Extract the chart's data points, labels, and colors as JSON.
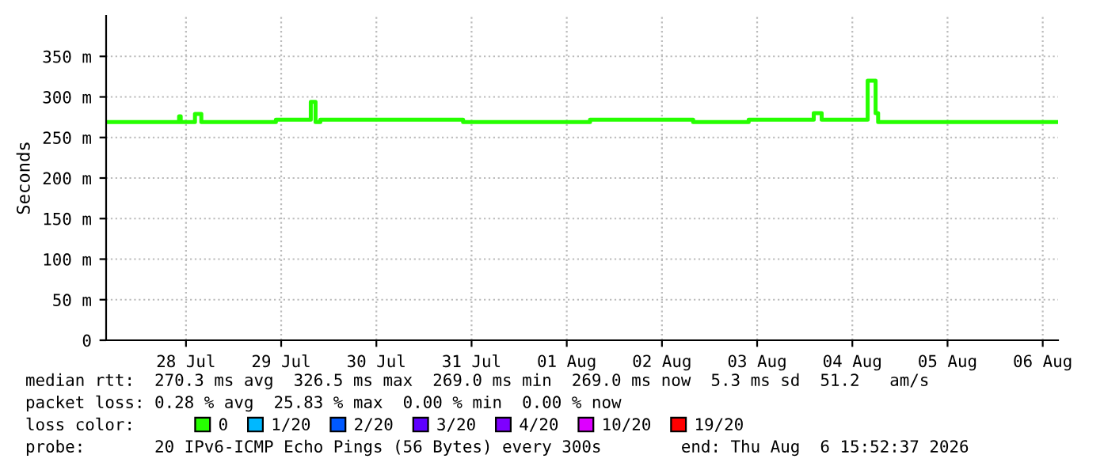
{
  "chart_data": {
    "type": "step",
    "ylabel": "Seconds",
    "legend_title": "loss color:",
    "legend": "bottom",
    "grid": true,
    "marker": "none",
    "line_style": "solid",
    "x": [
      "2026-07-27T15:52",
      "2026-07-28T10:16",
      "2026-07-28T10:40",
      "2026-07-28T14:16",
      "2026-07-28T15:52",
      "2026-07-29T10:40",
      "2026-07-29T19:28",
      "2026-07-29T20:40",
      "2026-07-29T21:52",
      "2026-07-31T09:52",
      "2026-08-01T17:52",
      "2026-08-02T19:52",
      "2026-08-03T09:52",
      "2026-08-04T02:16",
      "2026-08-04T04:16",
      "2026-08-04T15:52",
      "2026-08-04T17:52",
      "2026-08-04T18:30",
      "2026-08-06T15:52"
    ],
    "series": [
      {
        "name": "0",
        "color": "#26ff00",
        "values": [
          269,
          276,
          269,
          279,
          269,
          272,
          294,
          269,
          272,
          269,
          272,
          269,
          272,
          280,
          272,
          320,
          280,
          269,
          269
        ]
      },
      {
        "name": "1/20",
        "color": "#00b8ff",
        "values": [
          null,
          null,
          null,
          null,
          null,
          null,
          null,
          null,
          null,
          null,
          null,
          null,
          null,
          null,
          null,
          null,
          null,
          null,
          null
        ]
      },
      {
        "name": "2/20",
        "color": "#0059ff",
        "values": [
          null,
          null,
          null,
          null,
          null,
          null,
          null,
          null,
          null,
          null,
          null,
          null,
          null,
          null,
          null,
          null,
          null,
          null,
          null
        ]
      },
      {
        "name": "3/20",
        "color": "#5e00ff",
        "values": [
          null,
          null,
          null,
          null,
          null,
          null,
          null,
          null,
          null,
          null,
          null,
          null,
          null,
          null,
          null,
          null,
          null,
          null,
          null
        ]
      },
      {
        "name": "4/20",
        "color": "#7e00ff",
        "values": [
          null,
          null,
          null,
          null,
          null,
          null,
          null,
          null,
          null,
          null,
          null,
          null,
          null,
          null,
          null,
          null,
          null,
          null,
          null
        ]
      },
      {
        "name": "10/20",
        "color": "#dd00ff",
        "values": [
          null,
          null,
          null,
          null,
          null,
          null,
          null,
          null,
          null,
          null,
          null,
          null,
          null,
          null,
          null,
          null,
          null,
          null,
          null
        ]
      },
      {
        "name": "19/20",
        "color": "#ff0000",
        "values": [
          null,
          null,
          null,
          null,
          null,
          null,
          null,
          null,
          null,
          null,
          null,
          null,
          null,
          null,
          null,
          null,
          null,
          null,
          null
        ]
      }
    ],
    "xlim": [
      "2026-07-27T15:52",
      "2026-08-06T15:52"
    ],
    "xticks": [
      {
        "value": "2026-07-28T12:00",
        "label": "28 Jul"
      },
      {
        "value": "2026-07-29T12:00",
        "label": "29 Jul"
      },
      {
        "value": "2026-07-30T12:00",
        "label": "30 Jul"
      },
      {
        "value": "2026-07-31T12:00",
        "label": "31 Jul"
      },
      {
        "value": "2026-08-01T12:00",
        "label": "01 Aug"
      },
      {
        "value": "2026-08-02T12:00",
        "label": "02 Aug"
      },
      {
        "value": "2026-08-03T12:00",
        "label": "03 Aug"
      },
      {
        "value": "2026-08-04T12:00",
        "label": "04 Aug"
      },
      {
        "value": "2026-08-05T12:00",
        "label": "05 Aug"
      },
      {
        "value": "2026-08-06T12:00",
        "label": "06 Aug"
      }
    ],
    "ylim": [
      0,
      400
    ],
    "yticks": [
      0,
      {
        "value": 50,
        "label": "50 m"
      },
      {
        "value": 100,
        "label": "100 m"
      },
      {
        "value": 150,
        "label": "150 m"
      },
      {
        "value": 200,
        "label": "200 m"
      },
      {
        "value": 250,
        "label": "250 m"
      },
      {
        "value": 300,
        "label": "300 m"
      },
      {
        "value": 350,
        "label": "350 m"
      }
    ],
    "annotations": [
      "median rtt:  270.3 ms avg  326.5 ms max  269.0 ms min  269.0 ms now  5.3 ms sd  51.2   am/s",
      "packet loss: 0.28 % avg  25.83 % max  0.00 % min  0.00 % now",
      "probe:       20 IPv6-ICMP Echo Pings (56 Bytes) every 300s        end: Thu Aug  6 15:52:37 2026"
    ]
  }
}
